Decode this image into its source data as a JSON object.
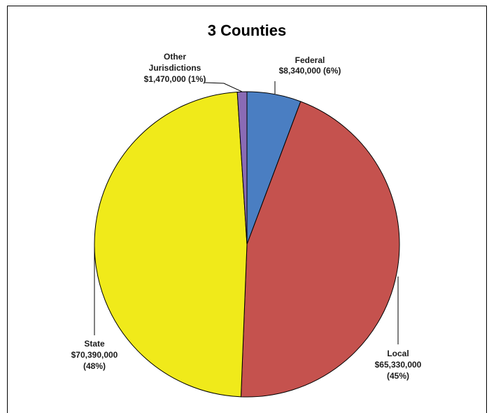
{
  "chart_data": {
    "type": "pie",
    "title": "3 Counties",
    "slices": [
      {
        "label_lines": [
          "Federal",
          "$8,340,000 (6%)"
        ],
        "value": 8340000,
        "percent": 6,
        "color": "#4a7ec2"
      },
      {
        "label_lines": [
          "Local",
          "$65,330,000",
          "(45%)"
        ],
        "value": 65330000,
        "percent": 45,
        "color": "#c5524e"
      },
      {
        "label_lines": [
          "State",
          "$70,390,000",
          "(48%)"
        ],
        "value": 70390000,
        "percent": 48,
        "color": "#f0ea1a"
      },
      {
        "label_lines": [
          "Other",
          "Jurisdictions",
          "$1,470,000  (1%)"
        ],
        "value": 1470000,
        "percent": 1,
        "color": "#8a6bb5"
      }
    ],
    "start_angle_deg": 0,
    "direction": "clockwise",
    "legend": "none"
  }
}
